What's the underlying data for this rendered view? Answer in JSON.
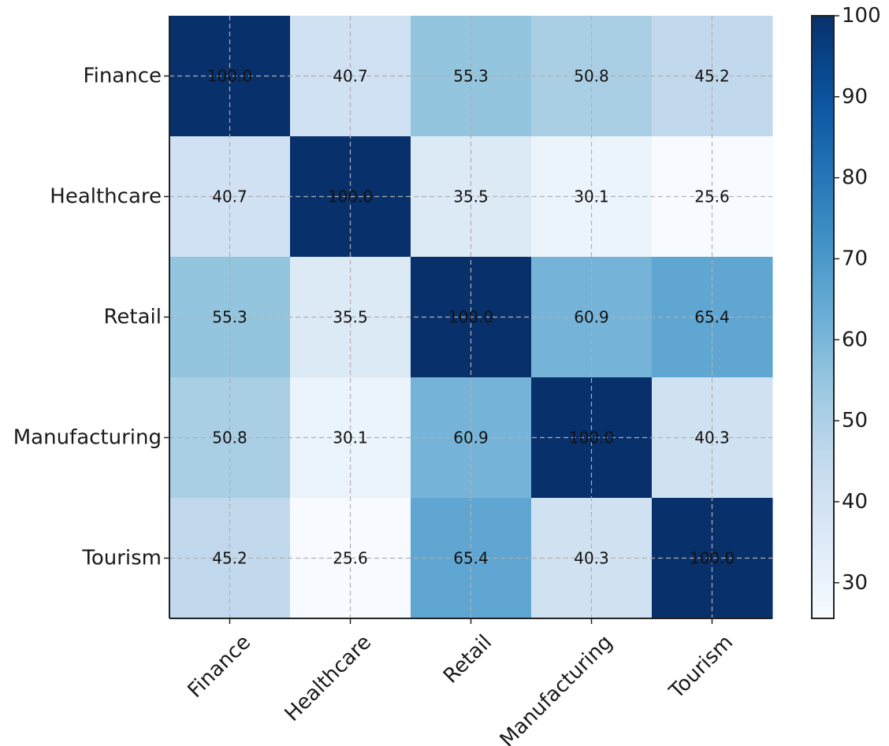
{
  "chart_data": {
    "type": "heatmap",
    "title": "",
    "xlabel": "",
    "ylabel": "",
    "x_categories": [
      "Finance",
      "Healthcare",
      "Retail",
      "Manufacturing",
      "Tourism"
    ],
    "y_categories": [
      "Finance",
      "Healthcare",
      "Retail",
      "Manufacturing",
      "Tourism"
    ],
    "values": [
      [
        100.0,
        40.7,
        55.3,
        50.8,
        45.2
      ],
      [
        40.7,
        100.0,
        35.5,
        30.1,
        25.6
      ],
      [
        55.3,
        35.5,
        100.0,
        60.9,
        65.4
      ],
      [
        50.8,
        30.1,
        60.9,
        100.0,
        40.3
      ],
      [
        45.2,
        25.6,
        65.4,
        40.3,
        100.0
      ]
    ],
    "value_format": "0.0",
    "colormap": "Blues",
    "vmin": 25.6,
    "vmax": 100.0,
    "colorbar_ticks": [
      30,
      40,
      50,
      60,
      70,
      80,
      90,
      100
    ],
    "grid": true,
    "grid_style": "dashed",
    "xtick_rotation": "45 degrees"
  }
}
